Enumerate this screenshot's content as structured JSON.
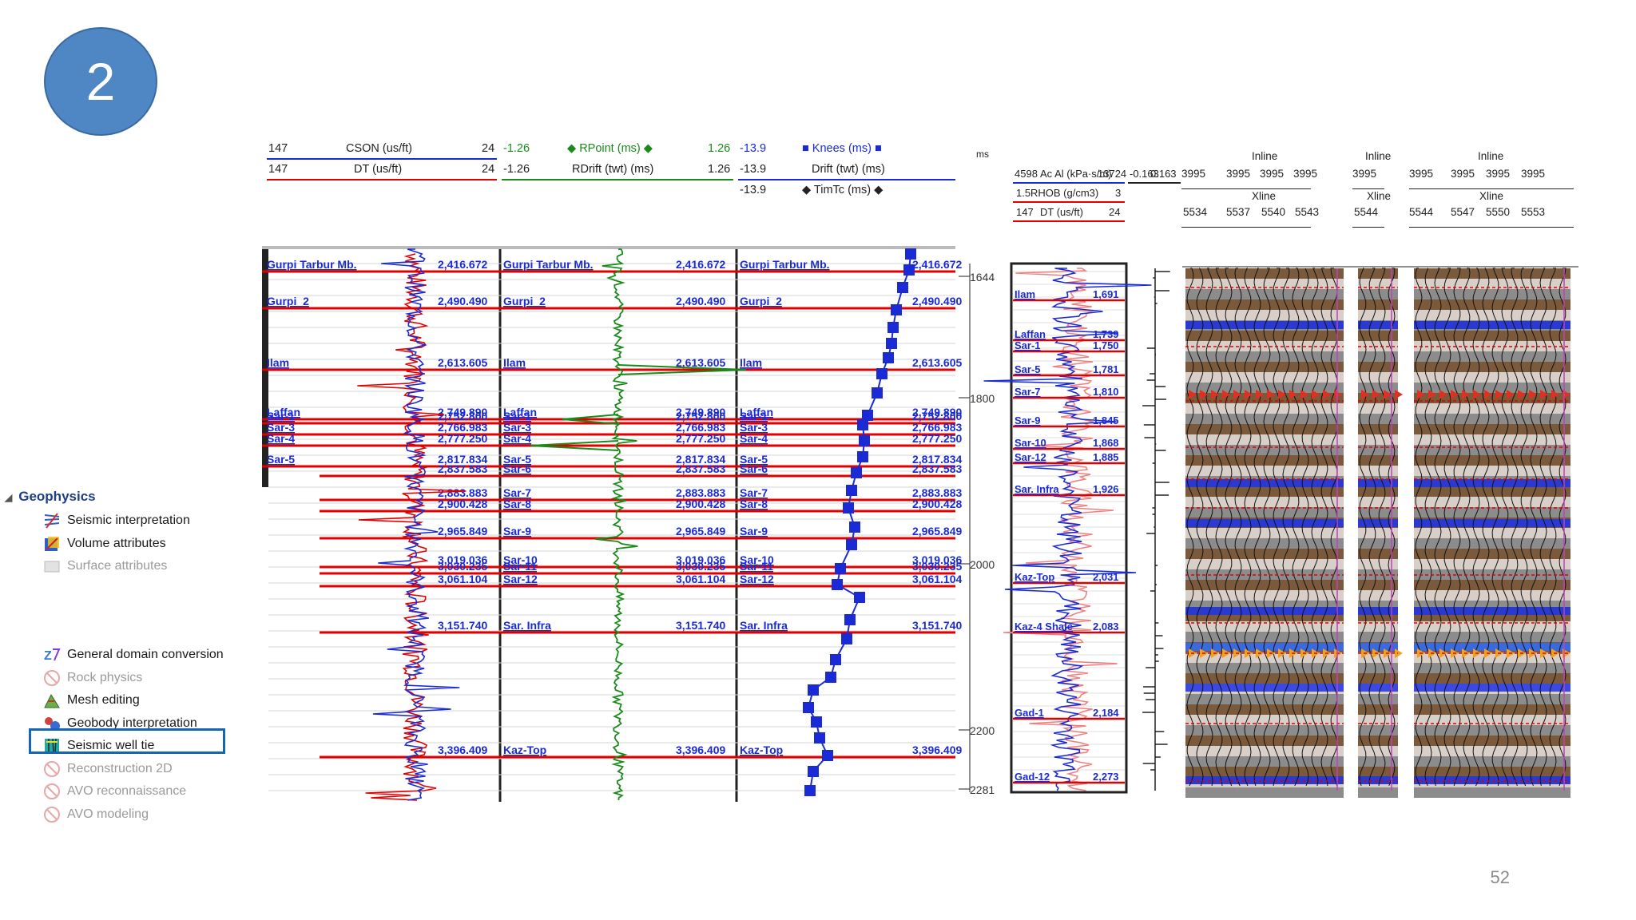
{
  "slide": {
    "step_number": "2",
    "page_number": "52"
  },
  "tree": {
    "group": "Geophysics",
    "items_top": [
      {
        "label": "Seismic interpretation",
        "icon": "seismic-interpretation-icon",
        "enabled": true
      },
      {
        "label": "Volume attributes",
        "icon": "volume-attributes-icon",
        "enabled": true
      },
      {
        "label": "Surface attributes",
        "icon": "surface-attributes-icon",
        "enabled": false
      }
    ],
    "items_bottom": [
      {
        "label": "General domain conversion",
        "icon": "domain-conversion-icon",
        "enabled": true
      },
      {
        "label": "Rock physics",
        "icon": "disabled-icon",
        "enabled": false
      },
      {
        "label": "Mesh editing",
        "icon": "mesh-editing-icon",
        "enabled": true
      },
      {
        "label": "Geobody interpretation",
        "icon": "geobody-icon",
        "enabled": true
      },
      {
        "label": "Seismic well tie",
        "icon": "seismic-well-tie-icon",
        "enabled": true,
        "selected": true
      },
      {
        "label": "Reconstruction 2D",
        "icon": "disabled-icon",
        "enabled": false
      },
      {
        "label": "AVO reconnaissance",
        "icon": "disabled-icon",
        "enabled": false
      },
      {
        "label": "AVO modeling",
        "icon": "disabled-icon",
        "enabled": false
      }
    ]
  },
  "track_headers": {
    "t1": {
      "r1_min": "147",
      "r1_name": "CSON (us/ft)",
      "r1_max": "24",
      "r2_min": "147",
      "r2_name": "DT (us/ft)",
      "r2_max": "24"
    },
    "t2": {
      "r1_min": "-1.26",
      "r1_name": "RPoint (ms)",
      "r1_max": "1.26",
      "r2_min": "-1.26",
      "r2_name": "RDrift (twt) (ms)",
      "r2_max": "1.26"
    },
    "t3": {
      "r1_min": "-13.9",
      "r1_name": "Knees (ms)",
      "r2_min": "-13.9",
      "r2_name": "Drift (twt) (ms)",
      "r3_min": "-13.9",
      "r3_name": "TimTc (ms)"
    },
    "time_unit": "ms",
    "synth": {
      "r1_min": "4598",
      "r1_name": "Ac Al (kPa·s/m)",
      "r1_max": "13724",
      "r2_min": "1.5",
      "r2_name": "RHOB (g/cm3)",
      "r2_max": "3",
      "r3_min": "147",
      "r3_name": "DT (us/ft)",
      "r3_max": "24",
      "extra": "-0.163",
      "extra2": "0.163"
    },
    "inline_label": "Inline",
    "xline_label": "Xline",
    "panel1_inline": [
      "3995",
      "3995",
      "3995",
      "3995"
    ],
    "panel1_xline": [
      "5534",
      "5537",
      "5540",
      "5543"
    ],
    "panel2_inline": [
      "3995"
    ],
    "panel2_xline": [
      "5544"
    ],
    "panel3_inline": [
      "3995",
      "3995",
      "3995",
      "3995"
    ],
    "panel3_xline": [
      "5544",
      "5547",
      "5550",
      "5553"
    ]
  },
  "time_axis": {
    "ticks": [
      "1644",
      "1800",
      "2000",
      "2200",
      "2281"
    ]
  },
  "well_tops": [
    {
      "name": "Gurpi Tarbur Mb.",
      "depth": "2,416.672"
    },
    {
      "name": "Gurpi_2",
      "depth": "2,490.490"
    },
    {
      "name": "Ilam",
      "depth": "2,613.605"
    },
    {
      "name": "Laffan",
      "depth": "2,749.890"
    },
    {
      "name": "Sar-1",
      "depth": "2,752.800"
    },
    {
      "name": "Sar-3",
      "depth": "2,766.983"
    },
    {
      "name": "Sar-4",
      "depth": "2,777.250"
    },
    {
      "name": "Sar-5",
      "depth": "2,817.834"
    },
    {
      "name": "Sar-6",
      "depth": "2,837.583"
    },
    {
      "name": "Sar-7",
      "depth": "2,883.883"
    },
    {
      "name": "Sar-8",
      "depth": "2,900.428"
    },
    {
      "name": "Sar-9",
      "depth": "2,965.849"
    },
    {
      "name": "Sar-10",
      "depth": "3,019.036"
    },
    {
      "name": "Sar-11",
      "depth": "3,030.235"
    },
    {
      "name": "Sar-12",
      "depth": "3,061.104"
    },
    {
      "name": "Sar. Infra",
      "depth": "3,151.740"
    },
    {
      "name": "Kaz-Top",
      "depth": "3,396.409"
    }
  ],
  "synth_tops": [
    {
      "name": "Ilam",
      "time": "1,691"
    },
    {
      "name": "Laffan",
      "time": "1,739"
    },
    {
      "name": "Sar-1",
      "time": "1,750"
    },
    {
      "name": "Sar-5",
      "time": "1,781"
    },
    {
      "name": "Sar-7",
      "time": "1,810"
    },
    {
      "name": "Sar-9",
      "time": "1,845"
    },
    {
      "name": "Sar-10",
      "time": "1,868"
    },
    {
      "name": "Sar-12",
      "time": "1,885"
    },
    {
      "name": "Sar. Infra",
      "time": "1,926"
    },
    {
      "name": "Kaz-Top",
      "time": "2,031"
    },
    {
      "name": "Kaz-4 Shale",
      "time": "2,083"
    },
    {
      "name": "Gad-1",
      "time": "2,184"
    },
    {
      "name": "Gad-12",
      "time": "2,273"
    }
  ],
  "colors": {
    "blue": "#1a2bd6",
    "red": "#e00000",
    "green": "#1a8a1a",
    "accent": "#4f86c4"
  }
}
